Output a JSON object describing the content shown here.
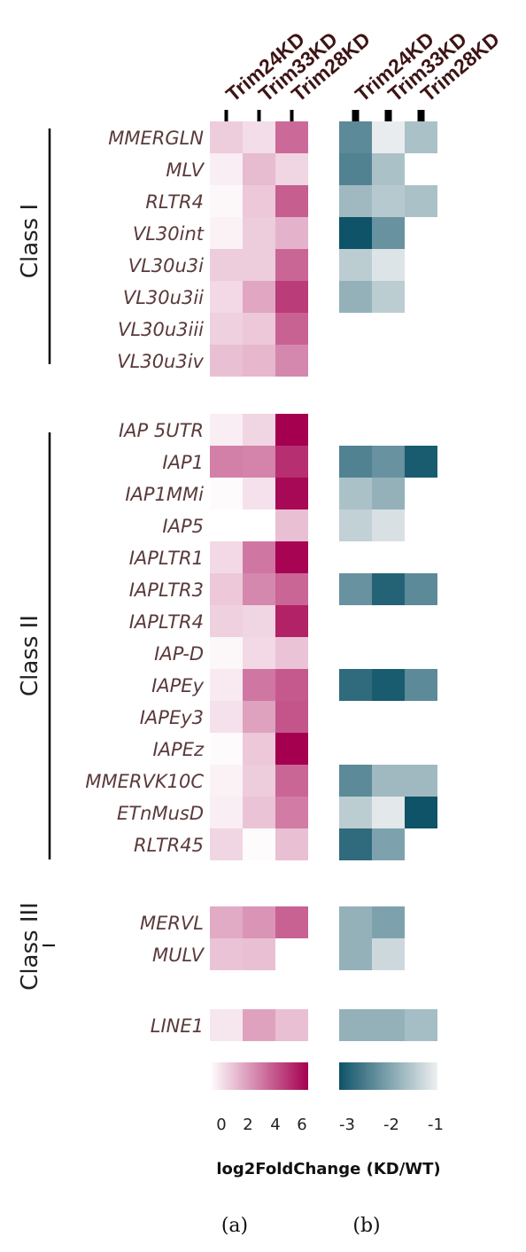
{
  "chart_data": [
    {
      "type": "heatmap",
      "panel": "a",
      "columns": [
        "Trim24KD",
        "Trim33KD",
        "Trim28KD"
      ],
      "rows": [
        "MMERGLN",
        "MLV",
        "RLTR4",
        "VL30int",
        "VL30u3i",
        "VL30u3ii",
        "VL30u3iii",
        "VL30u3iv",
        "IAP 5UTR",
        "IAP1",
        "IAP1MMi",
        "IAP5",
        "IAPLTR1",
        "IAPLTR3",
        "IAPLTR4",
        "IAP-D",
        "IAPEy",
        "IAPEy3",
        "IAPEz",
        "MMERVK10C",
        "ETnMusD",
        "RLTR45",
        "MERVL",
        "MULV",
        "LINE1"
      ],
      "values": [
        [
          1.2,
          0.8,
          3.5
        ],
        [
          0.4,
          1.6,
          1.0
        ],
        [
          0.2,
          1.3,
          3.8
        ],
        [
          0.3,
          1.2,
          1.8
        ],
        [
          1.2,
          1.2,
          3.6
        ],
        [
          0.9,
          2.1,
          4.6
        ],
        [
          1.1,
          1.3,
          3.7
        ],
        [
          1.5,
          1.7,
          2.8
        ],
        [
          0.4,
          1.0,
          6.0
        ],
        [
          3.0,
          2.9,
          4.9
        ],
        [
          0.1,
          0.7,
          5.8
        ],
        [
          0.0,
          0.0,
          1.5
        ],
        [
          0.9,
          3.2,
          5.9
        ],
        [
          1.3,
          2.8,
          3.6
        ],
        [
          1.1,
          1.0,
          5.2
        ],
        [
          0.2,
          0.9,
          1.4
        ],
        [
          0.5,
          3.2,
          3.9
        ],
        [
          0.7,
          2.2,
          4.0
        ],
        [
          0.1,
          1.3,
          6.0
        ],
        [
          0.3,
          1.2,
          3.6
        ],
        [
          0.4,
          1.4,
          3.1
        ],
        [
          1.0,
          0.1,
          1.5
        ],
        [
          2.0,
          2.5,
          3.7
        ],
        [
          1.4,
          1.5,
          null
        ],
        [
          0.6,
          2.2,
          1.5
        ]
      ],
      "colorbar": {
        "ticks": [
          "0",
          "2",
          "4",
          "6"
        ],
        "min": 0,
        "max": 6,
        "low_color": "#ffffff",
        "high_color": "#a50050"
      }
    },
    {
      "type": "heatmap",
      "panel": "b",
      "columns": [
        "Trim24KD",
        "Trim33KD",
        "Trim28KD"
      ],
      "rows": [
        "MMERGLN",
        "MLV",
        "RLTR4",
        "VL30int",
        "VL30u3i",
        "VL30u3ii",
        "VL30u3iii",
        "VL30u3iv",
        "IAP 5UTR",
        "IAP1",
        "IAP1MMi",
        "IAP5",
        "IAPLTR1",
        "IAPLTR3",
        "IAPLTR4",
        "IAP-D",
        "IAPEy",
        "IAPEy3",
        "IAPEz",
        "MMERVK10C",
        "ETnMusD",
        "RLTR45",
        "MERVL",
        "MULV",
        "LINE1"
      ],
      "values": [
        [
          -2.3,
          -1.05,
          -1.6
        ],
        [
          -2.4,
          -1.6,
          null
        ],
        [
          -1.7,
          -1.5,
          -1.6
        ],
        [
          -3.0,
          -2.2,
          null
        ],
        [
          -1.45,
          -1.15,
          null
        ],
        [
          -1.8,
          -1.45,
          null
        ],
        [
          null,
          null,
          null
        ],
        [
          null,
          null,
          null
        ],
        [
          null,
          null,
          null
        ],
        [
          -2.4,
          -2.2,
          -2.9
        ],
        [
          -1.6,
          -1.8,
          null
        ],
        [
          -1.4,
          -1.2,
          null
        ],
        [
          null,
          null,
          null
        ],
        [
          -2.2,
          -2.8,
          -2.3
        ],
        [
          null,
          null,
          null
        ],
        [
          null,
          null,
          null
        ],
        [
          -2.7,
          -2.9,
          -2.3
        ],
        [
          null,
          null,
          null
        ],
        [
          null,
          null,
          null
        ],
        [
          -2.3,
          -1.7,
          -1.7
        ],
        [
          -1.45,
          -1.1,
          -3.0
        ],
        [
          -2.7,
          -2.0,
          null
        ],
        [
          -1.8,
          -2.0,
          null
        ],
        [
          -1.8,
          -1.3,
          null
        ],
        [
          -1.8,
          -1.8,
          -1.65
        ]
      ],
      "colorbar": {
        "ticks": [
          "-3",
          "-2",
          "-1"
        ],
        "min": -3,
        "max": -1,
        "low_color": "#0e5368",
        "high_color": "#eef0f1"
      }
    }
  ],
  "row_labels": [
    "MMERGLN",
    "MLV",
    "RLTR4",
    "VL30int",
    "VL30u3i",
    "VL30u3ii",
    "VL30u3iii",
    "VL30u3iv",
    "IAP 5UTR",
    "IAP1",
    "IAP1MMi",
    "IAP5",
    "IAPLTR1",
    "IAPLTR3",
    "IAPLTR4",
    "IAP-D",
    "IAPEy",
    "IAPEy3",
    "IAPEz",
    "MMERVK10C",
    "ETnMusD",
    "RLTR45",
    "MERVL",
    "MULV",
    "LINE1"
  ],
  "column_labels": [
    "Trim24KD",
    "Trim33KD",
    "Trim28KD"
  ],
  "class_labels": [
    "Class I",
    "Class II",
    "Class III"
  ],
  "axis_title": "log2FoldChange  (KD/WT)",
  "panel_labels": [
    "(a)",
    "(b)"
  ],
  "colors": {
    "row_label": "#5a3a3a",
    "column_label": "#3d1414"
  }
}
